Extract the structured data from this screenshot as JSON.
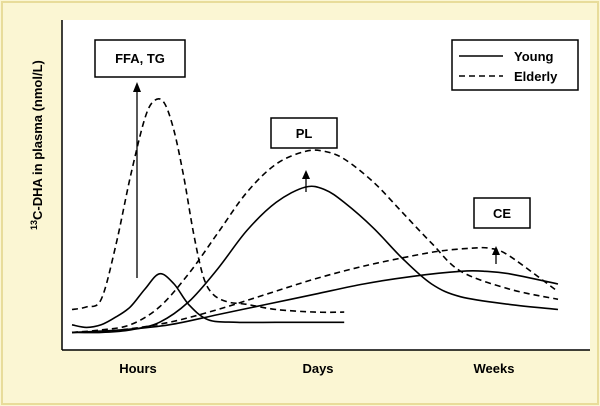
{
  "chart_data": {
    "type": "line",
    "title": "",
    "xlabel": "",
    "ylabel": "C-DHA in plasma (nmol/L)",
    "ylabel_superscript": "13",
    "x_ticks": [
      "Hours",
      "Days",
      "Weeks"
    ],
    "y_ticks": [],
    "grid": false,
    "legend": {
      "position": "top-right",
      "entries": [
        {
          "name": "Young",
          "style": "solid"
        },
        {
          "name": "Elderly",
          "style": "dashed"
        }
      ]
    },
    "annotations": [
      {
        "text": "FFA, TG",
        "fraction": "FFA, TG"
      },
      {
        "text": "PL",
        "fraction": "PL"
      },
      {
        "text": "CE",
        "fraction": "CE"
      }
    ],
    "note": "relative units; x spans 0-10 (Hours≈2, Days≈5, Weeks≈8.5); y spans 0-10",
    "series": [
      {
        "name": "Young",
        "group": "FFA, TG",
        "style": "solid",
        "x": [
          0,
          0.3,
          0.6,
          0.9,
          1.2,
          1.5,
          1.8,
          2.1,
          2.4,
          2.8,
          3.4,
          4.2,
          5.0,
          5.6
        ],
        "y": [
          0.4,
          0.3,
          0.4,
          0.7,
          1.1,
          1.8,
          2.4,
          2.0,
          1.2,
          0.6,
          0.5,
          0.5,
          0.5,
          0.5
        ]
      },
      {
        "name": "Elderly",
        "group": "FFA, TG",
        "style": "dashed",
        "x": [
          0,
          0.3,
          0.6,
          0.9,
          1.2,
          1.5,
          1.7,
          1.9,
          2.1,
          2.3,
          2.5,
          2.7,
          2.9,
          3.2,
          3.6,
          4.2,
          5.0,
          5.6
        ],
        "y": [
          1.0,
          1.1,
          1.4,
          3.5,
          6.2,
          8.5,
          9.2,
          9.1,
          8.0,
          6.2,
          4.0,
          2.3,
          1.6,
          1.3,
          1.2,
          1.0,
          0.9,
          0.9
        ]
      },
      {
        "name": "Young",
        "group": "PL",
        "style": "solid",
        "x": [
          0,
          0.6,
          1.2,
          1.8,
          2.4,
          3.0,
          3.6,
          4.2,
          4.8,
          5.2,
          5.6,
          6.2,
          6.8,
          7.4,
          8.0,
          9.0,
          10.0
        ],
        "y": [
          0.1,
          0.1,
          0.2,
          0.5,
          1.3,
          2.6,
          4.1,
          5.2,
          5.8,
          5.7,
          5.2,
          4.2,
          3.0,
          2.0,
          1.5,
          1.2,
          1.0
        ]
      },
      {
        "name": "Elderly",
        "group": "PL",
        "style": "dashed",
        "x": [
          0,
          0.6,
          1.2,
          1.8,
          2.4,
          3.0,
          3.6,
          4.2,
          4.8,
          5.2,
          5.6,
          6.2,
          6.8,
          7.4,
          8.0,
          9.0,
          10.0
        ],
        "y": [
          0.1,
          0.2,
          0.4,
          1.1,
          2.4,
          4.0,
          5.6,
          6.7,
          7.2,
          7.2,
          6.9,
          6.0,
          4.8,
          3.6,
          2.5,
          1.8,
          1.4
        ]
      },
      {
        "name": "Young",
        "group": "CE",
        "style": "solid",
        "x": [
          0,
          1.0,
          2.0,
          3.0,
          4.0,
          5.0,
          6.0,
          7.0,
          8.0,
          8.5,
          9.0,
          10.0
        ],
        "y": [
          0.1,
          0.2,
          0.4,
          0.8,
          1.2,
          1.6,
          2.0,
          2.3,
          2.5,
          2.5,
          2.4,
          2.0
        ]
      },
      {
        "name": "Elderly",
        "group": "CE",
        "style": "dashed",
        "x": [
          0,
          1.0,
          2.0,
          3.0,
          4.0,
          5.0,
          6.0,
          7.0,
          7.6,
          8.2,
          8.6,
          9.0,
          10.0
        ],
        "y": [
          0.1,
          0.2,
          0.5,
          1.0,
          1.6,
          2.2,
          2.7,
          3.1,
          3.3,
          3.4,
          3.4,
          3.1,
          1.7
        ]
      }
    ]
  }
}
